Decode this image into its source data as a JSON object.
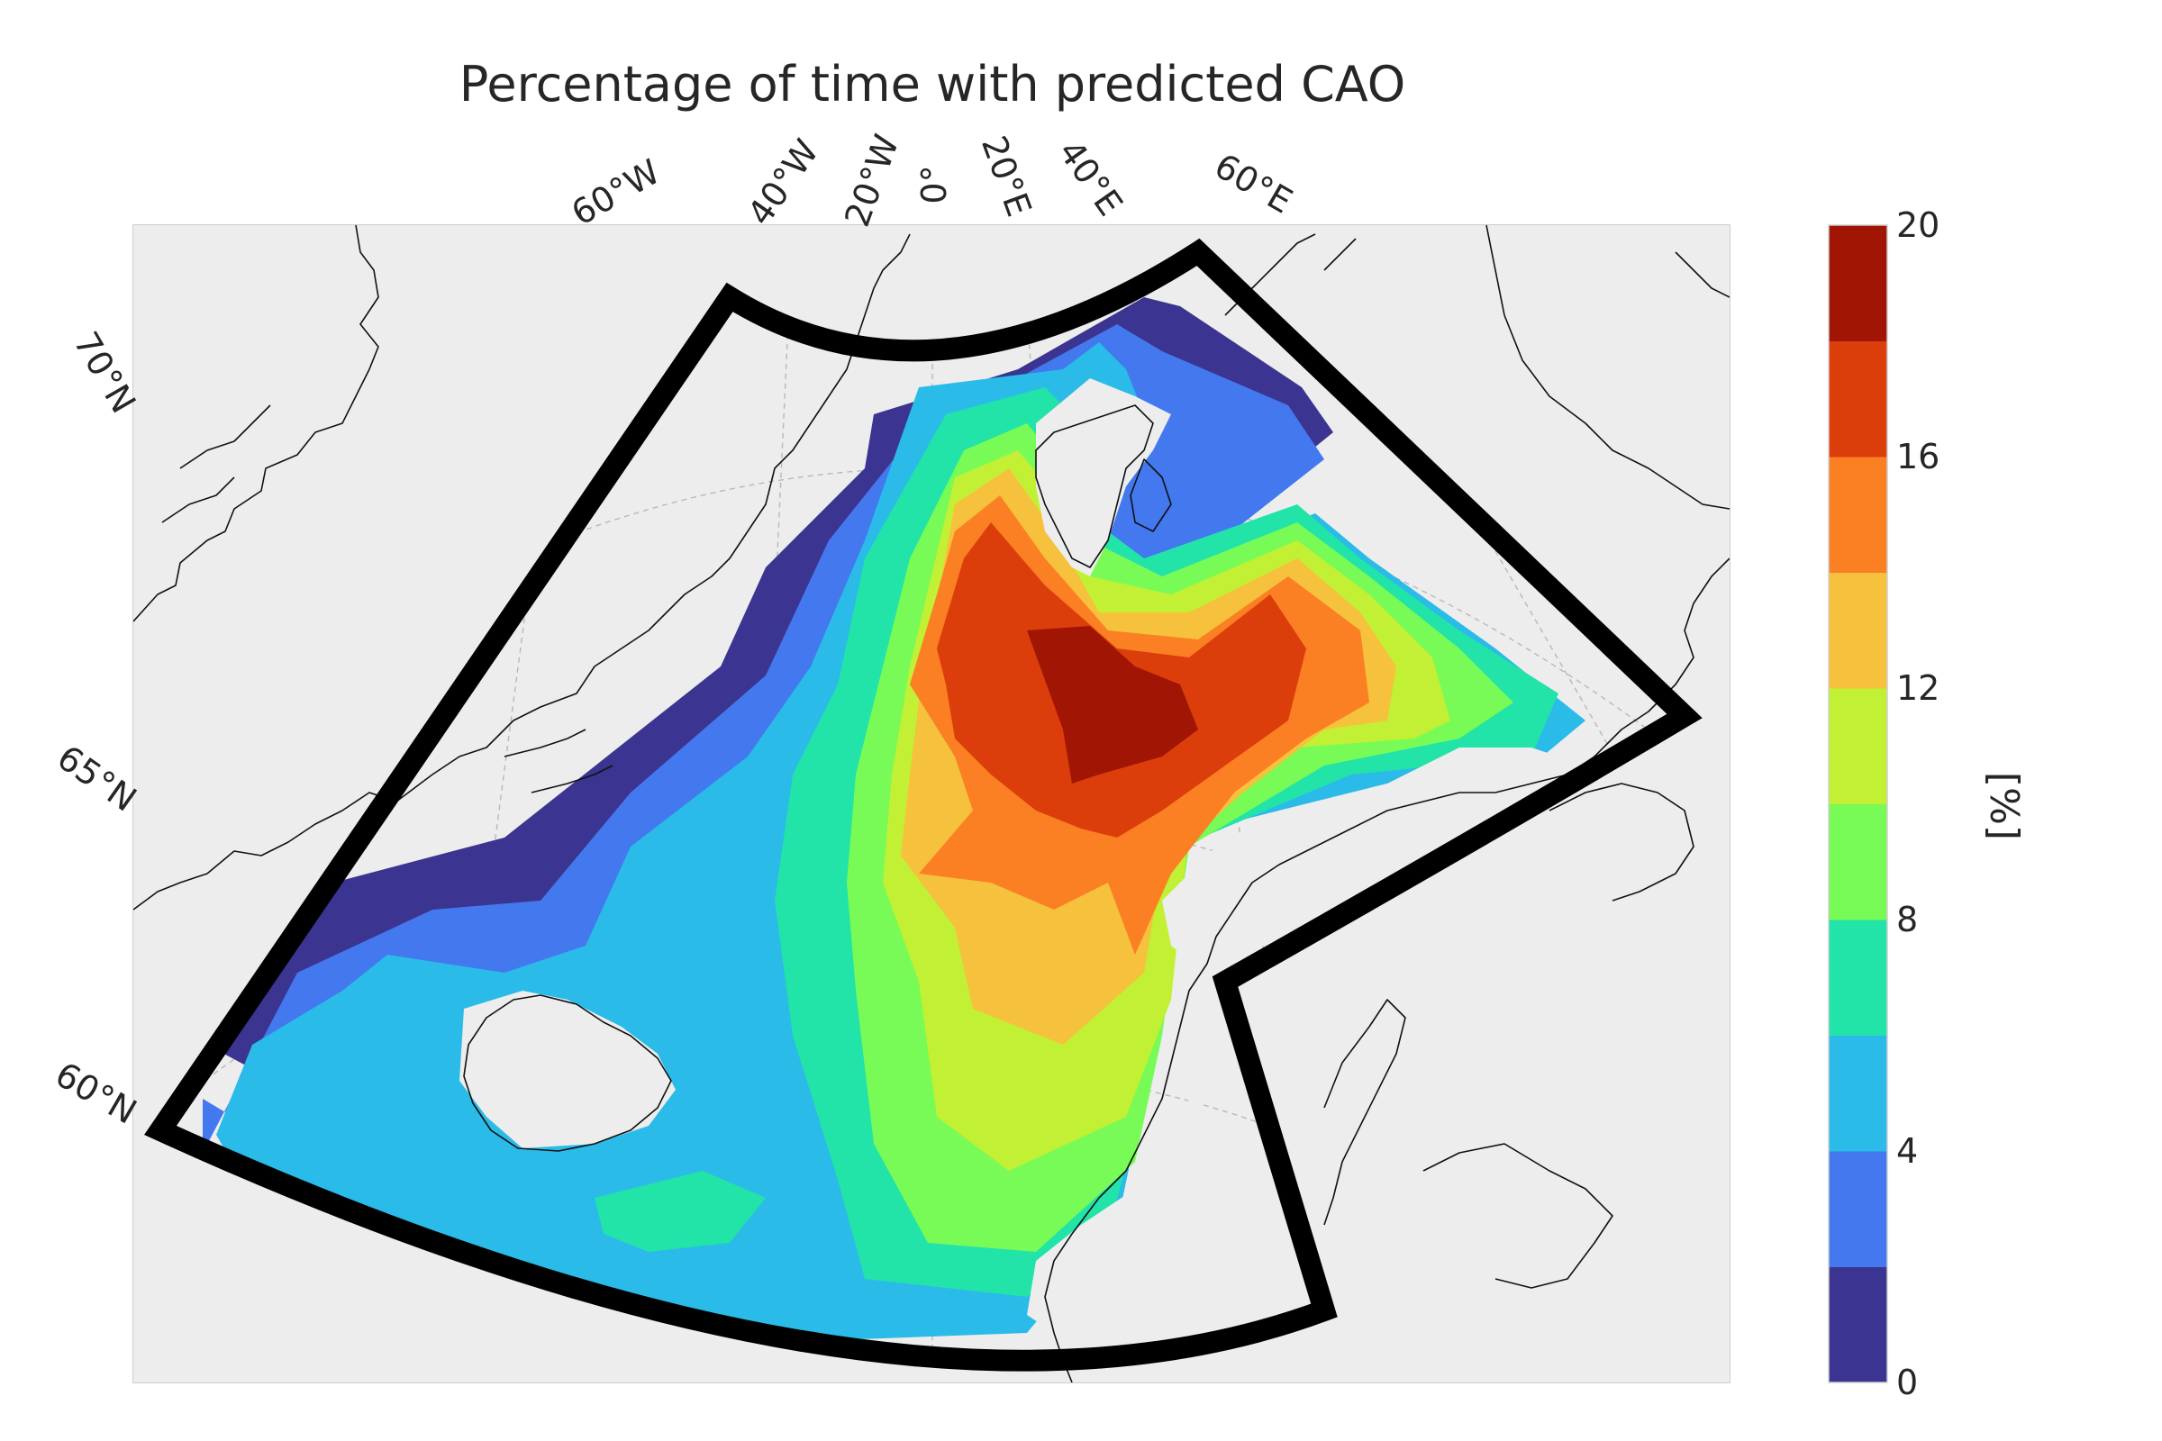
{
  "title": "Percentage of time with predicted CAO",
  "map": {
    "background_color": "#ededed",
    "projection": "polar",
    "longitude_labels": [
      "60°W",
      "40°W",
      "20°W",
      "0°",
      "20°E",
      "40°E",
      "60°E"
    ],
    "latitude_labels": [
      "70°N",
      "65°N",
      "60°N"
    ],
    "region_outline_color": "#000000"
  },
  "colorbar": {
    "label": "[%]",
    "ticks": [
      "0",
      "4",
      "8",
      "12",
      "16",
      "20"
    ],
    "levels": [
      0,
      2,
      4,
      6,
      8,
      10,
      12,
      14,
      16,
      18,
      20
    ],
    "colors": [
      "#3b3490",
      "#4378ee",
      "#2abbe8",
      "#22e3a8",
      "#78fb56",
      "#c2f034",
      "#f6c13c",
      "#fb7f23",
      "#dc3e0b",
      "#a01503"
    ]
  },
  "legend": {
    "contour_levels_percent": [
      0,
      2,
      4,
      6,
      8,
      10,
      12,
      14,
      16,
      18,
      20
    ]
  }
}
